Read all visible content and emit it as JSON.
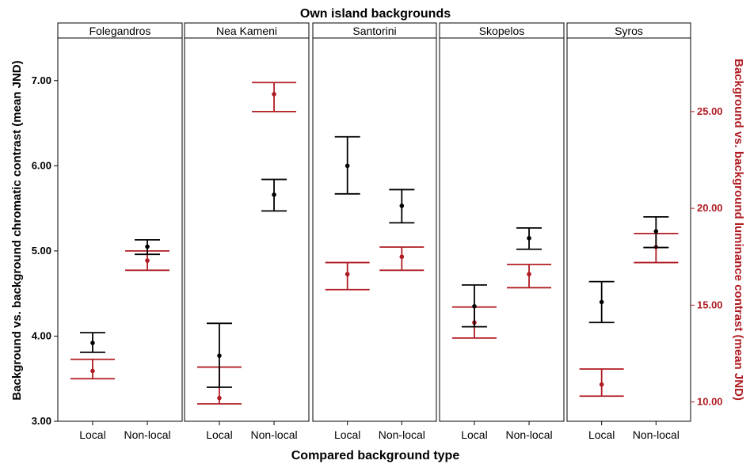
{
  "chart_data": {
    "type": "errorbar",
    "title": "Own island backgrounds",
    "xlabel": "Compared background type",
    "ylabel_left": "Background vs. background chromatic contrast (mean JND)",
    "ylabel_right": "Background vs. background luminance contrast (mean JND)",
    "ylim_left": [
      3.0,
      7.5
    ],
    "ylim_right": [
      9.0,
      28.8
    ],
    "yticks_left": [
      "3.00",
      "4.00",
      "5.00",
      "6.00",
      "7.00"
    ],
    "yticks_left_values": [
      3.0,
      4.0,
      5.0,
      6.0,
      7.0
    ],
    "yticks_right": [
      "10.00",
      "15.00",
      "20.00",
      "25.00"
    ],
    "yticks_right_values": [
      10.0,
      15.0,
      20.0,
      25.0
    ],
    "categories": [
      "Local",
      "Non-local"
    ],
    "colors": {
      "chromatic": "#000000",
      "luminance": "#b01c23"
    },
    "panels": [
      {
        "name": "Folegandros",
        "chromatic": [
          {
            "mean": 3.92,
            "low": 3.81,
            "high": 4.04
          },
          {
            "mean": 5.05,
            "low": 4.96,
            "high": 5.13
          }
        ],
        "luminance": [
          {
            "mean": 11.6,
            "low": 11.2,
            "high": 12.2
          },
          {
            "mean": 17.3,
            "low": 16.8,
            "high": 17.8
          }
        ]
      },
      {
        "name": "Nea Kameni",
        "chromatic": [
          {
            "mean": 3.77,
            "low": 3.4,
            "high": 4.15
          },
          {
            "mean": 5.66,
            "low": 5.47,
            "high": 5.84
          }
        ],
        "luminance": [
          {
            "mean": 10.2,
            "low": 9.9,
            "high": 11.8
          },
          {
            "mean": 25.9,
            "low": 25.0,
            "high": 26.5
          }
        ]
      },
      {
        "name": "Santorini",
        "chromatic": [
          {
            "mean": 6.0,
            "low": 5.67,
            "high": 6.34
          },
          {
            "mean": 5.53,
            "low": 5.33,
            "high": 5.72
          }
        ],
        "luminance": [
          {
            "mean": 16.6,
            "low": 15.8,
            "high": 17.2
          },
          {
            "mean": 17.5,
            "low": 16.8,
            "high": 18.0
          }
        ]
      },
      {
        "name": "Skopelos",
        "chromatic": [
          {
            "mean": 4.35,
            "low": 4.11,
            "high": 4.6
          },
          {
            "mean": 5.15,
            "low": 5.02,
            "high": 5.27
          }
        ],
        "luminance": [
          {
            "mean": 14.1,
            "low": 13.3,
            "high": 14.9
          },
          {
            "mean": 16.6,
            "low": 15.9,
            "high": 17.1
          }
        ]
      },
      {
        "name": "Syros",
        "chromatic": [
          {
            "mean": 4.4,
            "low": 4.16,
            "high": 4.64
          },
          {
            "mean": 5.23,
            "low": 5.04,
            "high": 5.4
          }
        ],
        "luminance": [
          {
            "mean": 10.9,
            "low": 10.3,
            "high": 11.7
          },
          {
            "mean": 18.0,
            "low": 17.2,
            "high": 18.7
          }
        ]
      }
    ]
  }
}
